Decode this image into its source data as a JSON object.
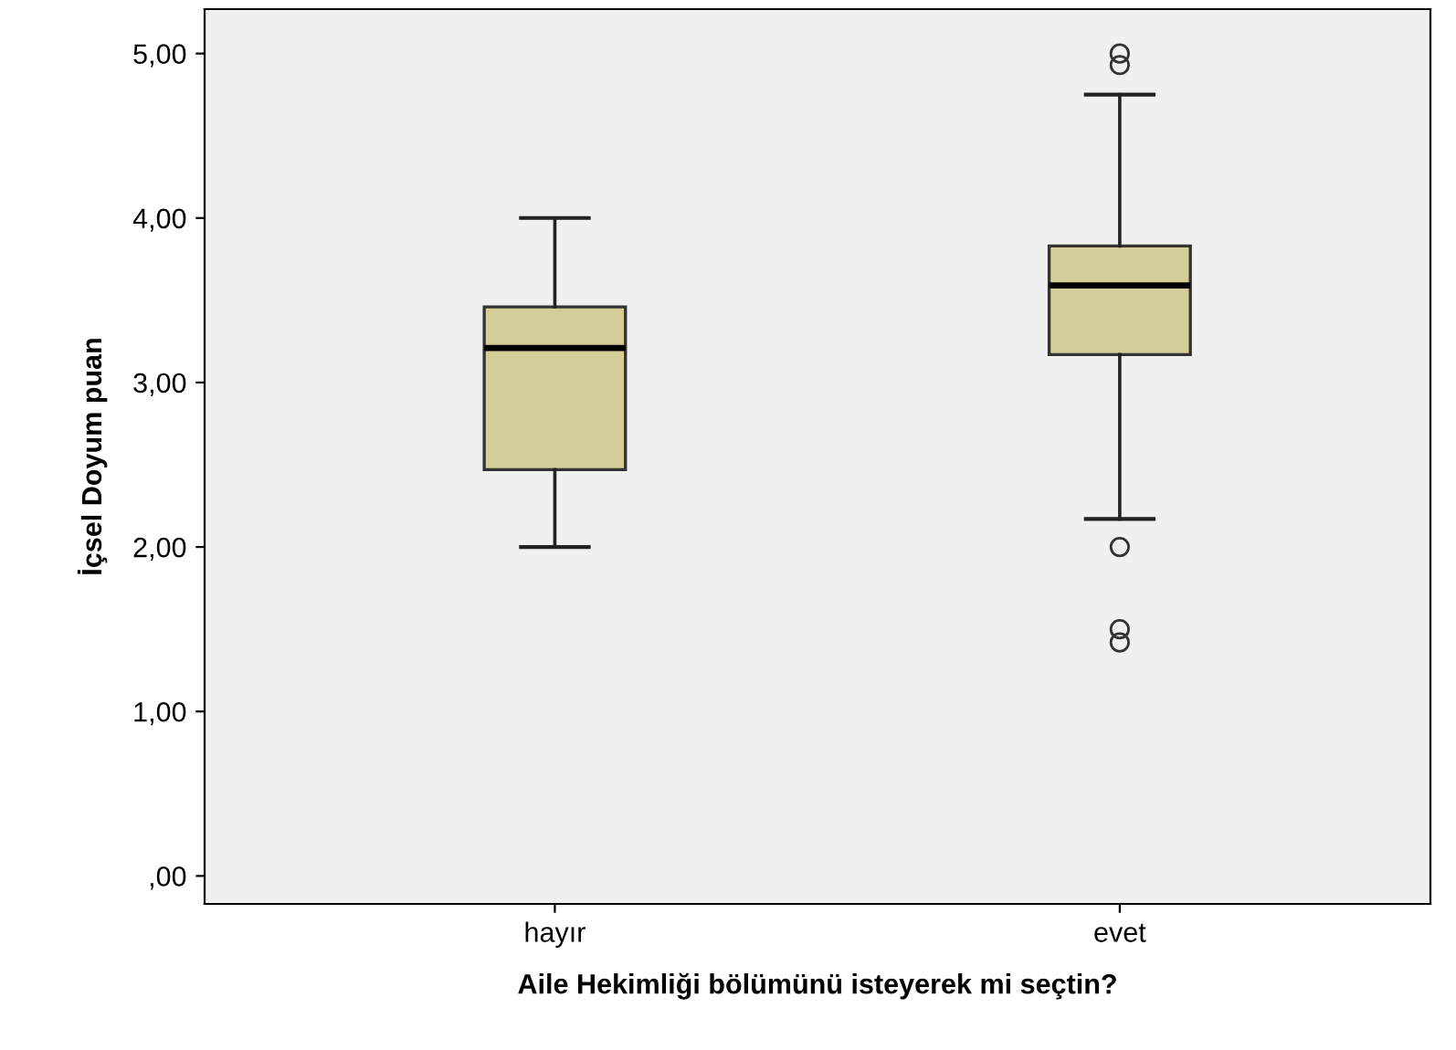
{
  "chart_data": {
    "type": "box",
    "xlabel": "Aile Hekimliği bölümünü isteyerek mi seçtin?",
    "ylabel": "İçsel Doyum puan",
    "categories": [
      "hayır",
      "evet"
    ],
    "boxes": [
      {
        "low": 2.0,
        "q1": 2.47,
        "median": 3.21,
        "q3": 3.46,
        "high": 4.0
      },
      {
        "low": 2.17,
        "q1": 3.17,
        "median": 3.59,
        "q3": 3.83,
        "high": 4.75,
        "outliers": [
          5.0,
          4.93,
          2.0,
          1.5,
          1.42
        ]
      }
    ],
    "color": "#d3ce97",
    "ylim": [
      -0.17,
      5.27
    ],
    "yticks": [
      {
        "value": 0,
        "label": ",00"
      },
      {
        "value": 1,
        "label": "1,00"
      },
      {
        "value": 2,
        "label": "2,00"
      },
      {
        "value": 3,
        "label": "3,00"
      },
      {
        "value": 4,
        "label": "4,00"
      },
      {
        "value": 5,
        "label": "5,00"
      }
    ],
    "grid": false
  }
}
